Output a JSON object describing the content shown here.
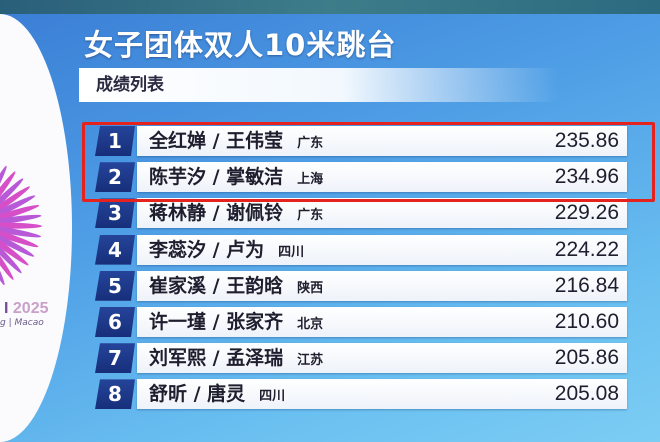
{
  "title": "女子团体双人10米跳台",
  "subtitle": "成绩列表",
  "logo": {
    "year": "2025",
    "sub": "g | Macao"
  },
  "highlight_color": "#e5231e",
  "results": [
    {
      "rank": "1",
      "names": "全红婵 / 王伟莹",
      "province": "广东",
      "score": "235.86"
    },
    {
      "rank": "2",
      "names": "陈芋汐 / 掌敏洁",
      "province": "上海",
      "score": "234.96"
    },
    {
      "rank": "3",
      "names": "蒋林静 / 谢佩铃",
      "province": "广东",
      "score": "229.26"
    },
    {
      "rank": "4",
      "names": "李蕊汐 / 卢为",
      "province": "四川",
      "score": "224.22"
    },
    {
      "rank": "5",
      "names": "崔家溪 / 王韵晗",
      "province": "陕西",
      "score": "216.84"
    },
    {
      "rank": "6",
      "names": "许一瑾 / 张家齐",
      "province": "北京",
      "score": "210.60"
    },
    {
      "rank": "7",
      "names": "刘军熙 / 孟泽瑞",
      "province": "江苏",
      "score": "205.86"
    },
    {
      "rank": "8",
      "names": "舒昕 / 唐灵",
      "province": "四川",
      "score": "205.08"
    }
  ]
}
